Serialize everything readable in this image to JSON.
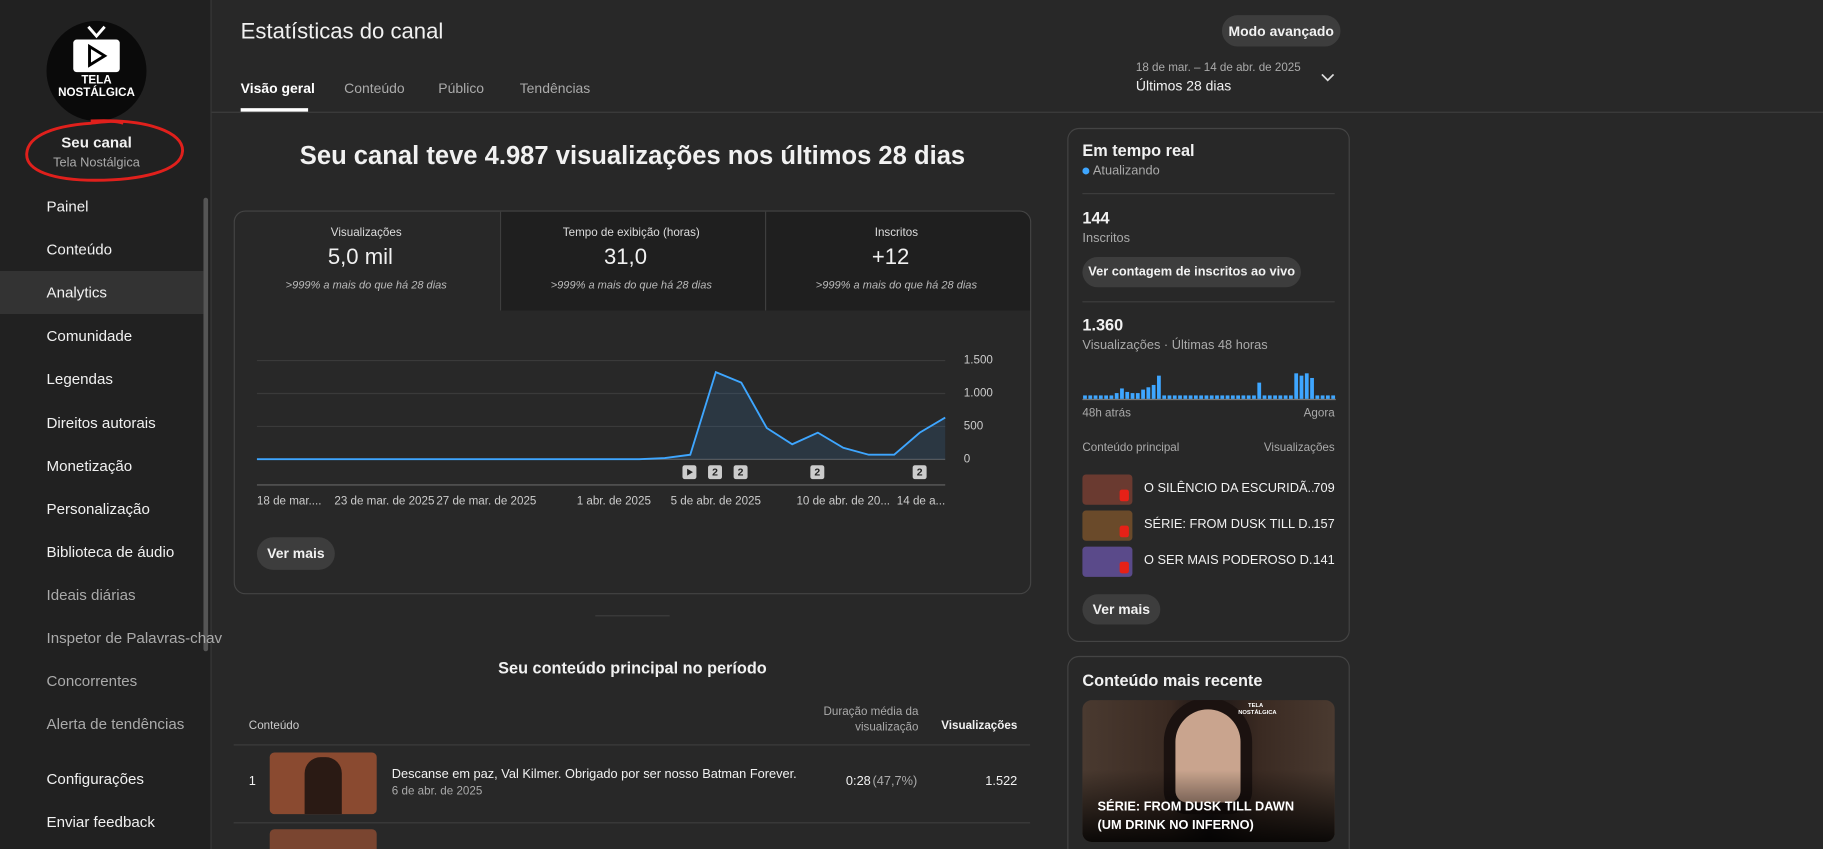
{
  "sidebar": {
    "logo_lines": [
      "TELA",
      "NOSTÁLGICA"
    ],
    "channel_title": "Seu canal",
    "channel_name": "Tela Nostálgica",
    "items": [
      "Painel",
      "Conteúdo",
      "Analytics",
      "Comunidade",
      "Legendas",
      "Direitos autorais",
      "Monetização",
      "Personalização",
      "Biblioteca de áudio"
    ],
    "extension_items": [
      "Ideais diárias",
      "Inspetor de Palavras-chav",
      "Concorrentes",
      "Alerta de tendências"
    ],
    "footer_items": [
      "Configurações",
      "Enviar feedback"
    ]
  },
  "header": {
    "title": "Estatísticas do canal",
    "advanced_button": "Modo avançado",
    "tabs": [
      "Visão geral",
      "Conteúdo",
      "Público",
      "Tendências"
    ],
    "date_range": "18 de mar. – 14 de abr. de 2025",
    "period": "Últimos 28 dias"
  },
  "overview": {
    "headline": "Seu canal teve 4.987 visualizações nos últimos 28 dias",
    "metrics": [
      {
        "label": "Visualizações",
        "value": "5,0 mil",
        "comparison": ">999% a mais do que há 28 dias"
      },
      {
        "label": "Tempo de exibição (horas)",
        "value": "31,0",
        "comparison": ">999% a mais do que há 28 dias"
      },
      {
        "label": "Inscritos",
        "value": "+12",
        "comparison": ">999% a mais do que há 28 dias"
      }
    ],
    "video_markers": [
      "2",
      "2",
      "2",
      "2"
    ],
    "more_button": "Ver mais"
  },
  "chart_data": [
    {
      "type": "line",
      "categories": [
        "18 de mar....",
        null,
        null,
        null,
        null,
        "23 de mar. de 2025",
        null,
        null,
        null,
        "27 de mar. de 2025",
        null,
        null,
        null,
        null,
        "1 abr. de 2025",
        null,
        null,
        null,
        "5 de abr. de 2025",
        null,
        null,
        null,
        null,
        "10 de abr. de 20...",
        null,
        null,
        null,
        "14 de a..."
      ],
      "values": [
        3,
        3,
        3,
        3,
        3,
        3,
        3,
        3,
        3,
        3,
        3,
        3,
        3,
        3,
        3,
        3,
        20,
        70,
        1324,
        1165,
        476,
        230,
        406,
        176,
        70,
        70,
        406,
        635
      ],
      "color": "#3ea6ff",
      "ylim": [
        0,
        1500
      ],
      "yticks": [
        0,
        500,
        {
          "value": 1000,
          "label": "1.000"
        },
        {
          "value": 1500,
          "label": "1.500"
        }
      ],
      "grid": true
    },
    {
      "type": "bar",
      "values": [
        15,
        15,
        15,
        15,
        15,
        15,
        25,
        45,
        30,
        25,
        25,
        40,
        50,
        60,
        100,
        15,
        15,
        15,
        15,
        15,
        15,
        15,
        15,
        15,
        15,
        15,
        15,
        15,
        15,
        15,
        15,
        15,
        15,
        70,
        15,
        15,
        15,
        15,
        15,
        15,
        110,
        100,
        110,
        90,
        15,
        15,
        15,
        15
      ],
      "color": "#3ea6ff"
    }
  ],
  "top_content": {
    "title": "Seu conteúdo principal no período",
    "columns": [
      "Conteúdo",
      "Duração média da visualização",
      "Visualizações"
    ],
    "rows": [
      {
        "rank": "1",
        "title": "Descanse em paz, Val Kilmer. Obrigado por ser nosso Batman Forever.",
        "date": "6 de abr. de 2025",
        "duration": "0:28",
        "percent": "(47,7%)",
        "views": "1.522"
      }
    ]
  },
  "realtime": {
    "title": "Em tempo real",
    "status": "Atualizando",
    "subscribers": "144",
    "subscribers_label": "Inscritos",
    "live_button": "Ver contagem de inscritos ao vivo",
    "views": "1.360",
    "views_label": "Visualizações · Últimas 48 horas",
    "axis_start": "48h atrás",
    "axis_end": "Agora",
    "list_header": "Conteúdo principal",
    "list_header_views": "Visualizações",
    "items": [
      {
        "title": "O SILÊNCIO DA ESCURIDÃ...",
        "views": "709"
      },
      {
        "title": "SÉRIE: FROM DUSK TILL D...",
        "views": "157"
      },
      {
        "title": "O SER MAIS PODEROSO D...",
        "views": "141"
      }
    ],
    "more_button": "Ver mais"
  },
  "latest": {
    "title": "Conteúdo mais recente",
    "thumb_logo_lines": [
      "TELA",
      "NOSTÁLGICA"
    ],
    "video_title": "SÉRIE: FROM DUSK TILL DAWN (UM DRINK NO INFERNO)"
  }
}
